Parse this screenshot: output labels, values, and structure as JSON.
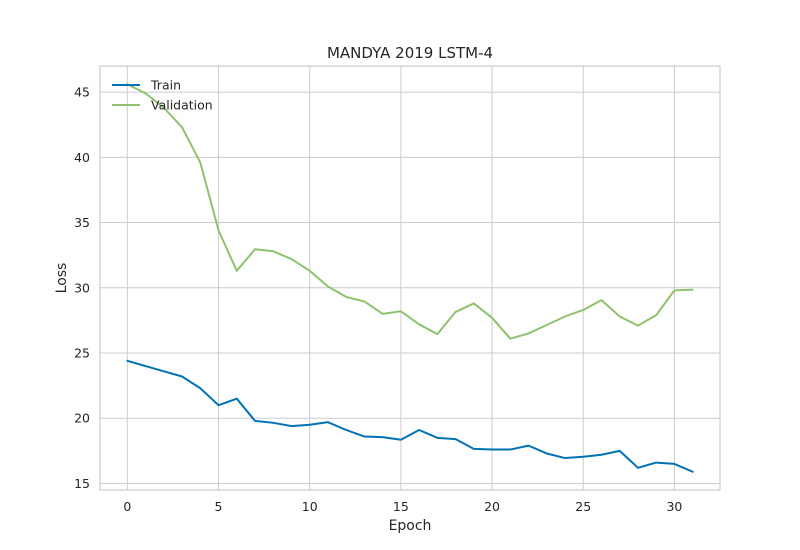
{
  "chart_data": {
    "type": "line",
    "title": "MANDYA 2019 LSTM-4",
    "xlabel": "Epoch",
    "ylabel": "Loss",
    "xlim": [
      -1.5,
      32.5
    ],
    "ylim": [
      14.5,
      47
    ],
    "xticks": [
      0,
      5,
      10,
      15,
      20,
      25,
      30
    ],
    "yticks": [
      15,
      20,
      25,
      30,
      35,
      40,
      45
    ],
    "grid": true,
    "legend_position": "upper-left",
    "x": [
      0,
      1,
      2,
      3,
      4,
      5,
      6,
      7,
      8,
      9,
      10,
      11,
      12,
      13,
      14,
      15,
      16,
      17,
      18,
      19,
      20,
      21,
      22,
      23,
      24,
      25,
      26,
      27,
      28,
      29,
      30,
      31
    ],
    "series": [
      {
        "name": "Train",
        "color": "#0072B2",
        "values": [
          24.4,
          24.0,
          23.6,
          23.2,
          22.3,
          21.0,
          21.5,
          19.8,
          19.65,
          19.4,
          19.5,
          19.7,
          19.1,
          18.6,
          18.55,
          18.35,
          19.1,
          18.5,
          18.4,
          17.65,
          17.6,
          17.6,
          17.9,
          17.3,
          16.95,
          17.05,
          17.2,
          17.5,
          16.2,
          16.6,
          16.5,
          15.9
        ]
      },
      {
        "name": "Validation",
        "color": "#8FC16F",
        "values": [
          45.6,
          44.9,
          43.8,
          42.3,
          39.6,
          34.4,
          31.3,
          32.95,
          32.8,
          32.2,
          31.3,
          30.1,
          29.3,
          28.95,
          28.0,
          28.2,
          27.2,
          26.45,
          28.15,
          28.8,
          27.7,
          26.1,
          26.5,
          27.15,
          27.8,
          28.3,
          29.05,
          27.8,
          27.1,
          27.9,
          29.8,
          29.85
        ]
      }
    ]
  }
}
